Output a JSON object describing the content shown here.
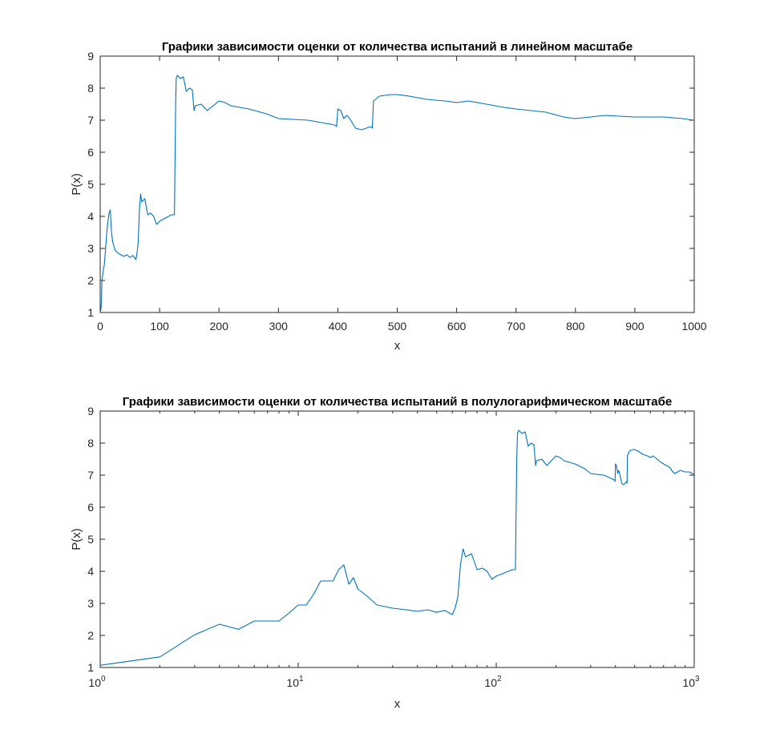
{
  "chart_data": [
    {
      "type": "line",
      "title": "Графики зависимости оценки от количества испытаний в линейном масштабе",
      "xlabel": "x",
      "ylabel": "P(x)",
      "xlim": [
        0,
        1000
      ],
      "ylim": [
        1,
        9
      ],
      "xscale": "linear",
      "xticks": [
        "0",
        "100",
        "200",
        "300",
        "400",
        "500",
        "600",
        "700",
        "800",
        "900",
        "1000"
      ],
      "yticks": [
        "1",
        "2",
        "3",
        "4",
        "5",
        "6",
        "7",
        "8",
        "9"
      ],
      "grid": false,
      "line_color": "#0072bd",
      "series": [
        {
          "x": [
            1,
            2,
            3,
            5,
            7,
            9,
            12,
            15,
            17,
            19,
            21,
            25,
            30,
            35,
            40,
            45,
            50,
            55,
            60,
            62,
            64,
            66,
            68,
            70,
            75,
            80,
            85,
            90,
            95,
            100,
            105,
            110,
            115,
            120,
            125,
            127,
            128,
            130,
            135,
            140,
            145,
            150,
            155,
            158,
            160,
            170,
            180,
            200,
            210,
            220,
            250,
            280,
            300,
            350,
            395,
            398,
            400,
            405,
            410,
            415,
            420,
            430,
            440,
            455,
            458,
            460,
            470,
            490,
            500,
            520,
            550,
            580,
            600,
            620,
            650,
            680,
            700,
            750,
            780,
            800,
            850,
            900,
            950,
            980,
            1000
          ],
          "y": [
            1.05,
            1.3,
            2.0,
            2.3,
            2.5,
            3.0,
            3.7,
            4.1,
            4.2,
            3.5,
            3.2,
            2.95,
            2.85,
            2.8,
            2.75,
            2.8,
            2.72,
            2.78,
            2.65,
            2.85,
            3.2,
            4.2,
            4.7,
            4.45,
            4.55,
            4.05,
            4.1,
            4.0,
            3.75,
            3.85,
            3.9,
            3.95,
            4.0,
            4.05,
            4.05,
            7.5,
            8.3,
            8.4,
            8.3,
            8.35,
            7.9,
            8.0,
            7.95,
            7.3,
            7.45,
            7.5,
            7.3,
            7.6,
            7.55,
            7.45,
            7.35,
            7.2,
            7.05,
            7.0,
            6.85,
            6.8,
            7.35,
            7.3,
            7.05,
            7.15,
            7.05,
            6.75,
            6.7,
            6.8,
            6.75,
            7.6,
            7.75,
            7.8,
            7.8,
            7.75,
            7.65,
            7.6,
            7.55,
            7.6,
            7.5,
            7.4,
            7.35,
            7.25,
            7.1,
            7.05,
            7.15,
            7.1,
            7.1,
            7.05,
            7.0
          ]
        }
      ]
    },
    {
      "type": "line",
      "title": "Графики зависимости оценки от количества испытаний в полулогарифмическом масштабе",
      "xlabel": "x",
      "ylabel": "P(x)",
      "xlim": [
        1,
        1000
      ],
      "ylim": [
        1,
        9
      ],
      "xscale": "log",
      "xticks": [
        "10^0",
        "10^1",
        "10^2",
        "10^3"
      ],
      "yticks": [
        "1",
        "2",
        "3",
        "4",
        "5",
        "6",
        "7",
        "8",
        "9"
      ],
      "grid": false,
      "line_color": "#0072bd",
      "series": [
        {
          "x": [
            1,
            2,
            3,
            4,
            5,
            6,
            7,
            8,
            9,
            10,
            11,
            12,
            13,
            14,
            15,
            16,
            17,
            18,
            19,
            20,
            21,
            22,
            25,
            30,
            35,
            40,
            45,
            50,
            55,
            60,
            62,
            64,
            66,
            68,
            70,
            75,
            80,
            85,
            90,
            95,
            100,
            105,
            110,
            115,
            120,
            125,
            127,
            128,
            130,
            135,
            140,
            145,
            150,
            155,
            158,
            160,
            170,
            180,
            200,
            210,
            220,
            250,
            280,
            300,
            350,
            395,
            398,
            400,
            405,
            410,
            415,
            420,
            430,
            440,
            455,
            458,
            460,
            470,
            490,
            500,
            520,
            550,
            580,
            600,
            620,
            650,
            680,
            700,
            750,
            780,
            800,
            850,
            900,
            950,
            980,
            1000
          ],
          "y": [
            1.07,
            1.33,
            2.02,
            2.35,
            2.19,
            2.45,
            2.45,
            2.45,
            2.7,
            2.95,
            2.95,
            3.3,
            3.7,
            3.7,
            3.7,
            4.05,
            4.2,
            3.6,
            3.8,
            3.45,
            3.35,
            3.25,
            2.95,
            2.85,
            2.8,
            2.75,
            2.8,
            2.72,
            2.78,
            2.65,
            2.85,
            3.2,
            4.2,
            4.7,
            4.45,
            4.55,
            4.05,
            4.1,
            4.0,
            3.75,
            3.85,
            3.9,
            3.95,
            4.0,
            4.05,
            4.05,
            7.5,
            8.3,
            8.4,
            8.3,
            8.35,
            7.9,
            8.0,
            7.95,
            7.3,
            7.45,
            7.5,
            7.3,
            7.6,
            7.55,
            7.45,
            7.35,
            7.2,
            7.05,
            7.0,
            6.85,
            6.8,
            7.35,
            7.3,
            7.05,
            7.15,
            7.05,
            6.75,
            6.7,
            6.8,
            6.75,
            7.6,
            7.75,
            7.8,
            7.8,
            7.75,
            7.65,
            7.6,
            7.55,
            7.6,
            7.5,
            7.4,
            7.35,
            7.25,
            7.1,
            7.05,
            7.15,
            7.1,
            7.1,
            7.05,
            7.0
          ]
        }
      ]
    }
  ]
}
